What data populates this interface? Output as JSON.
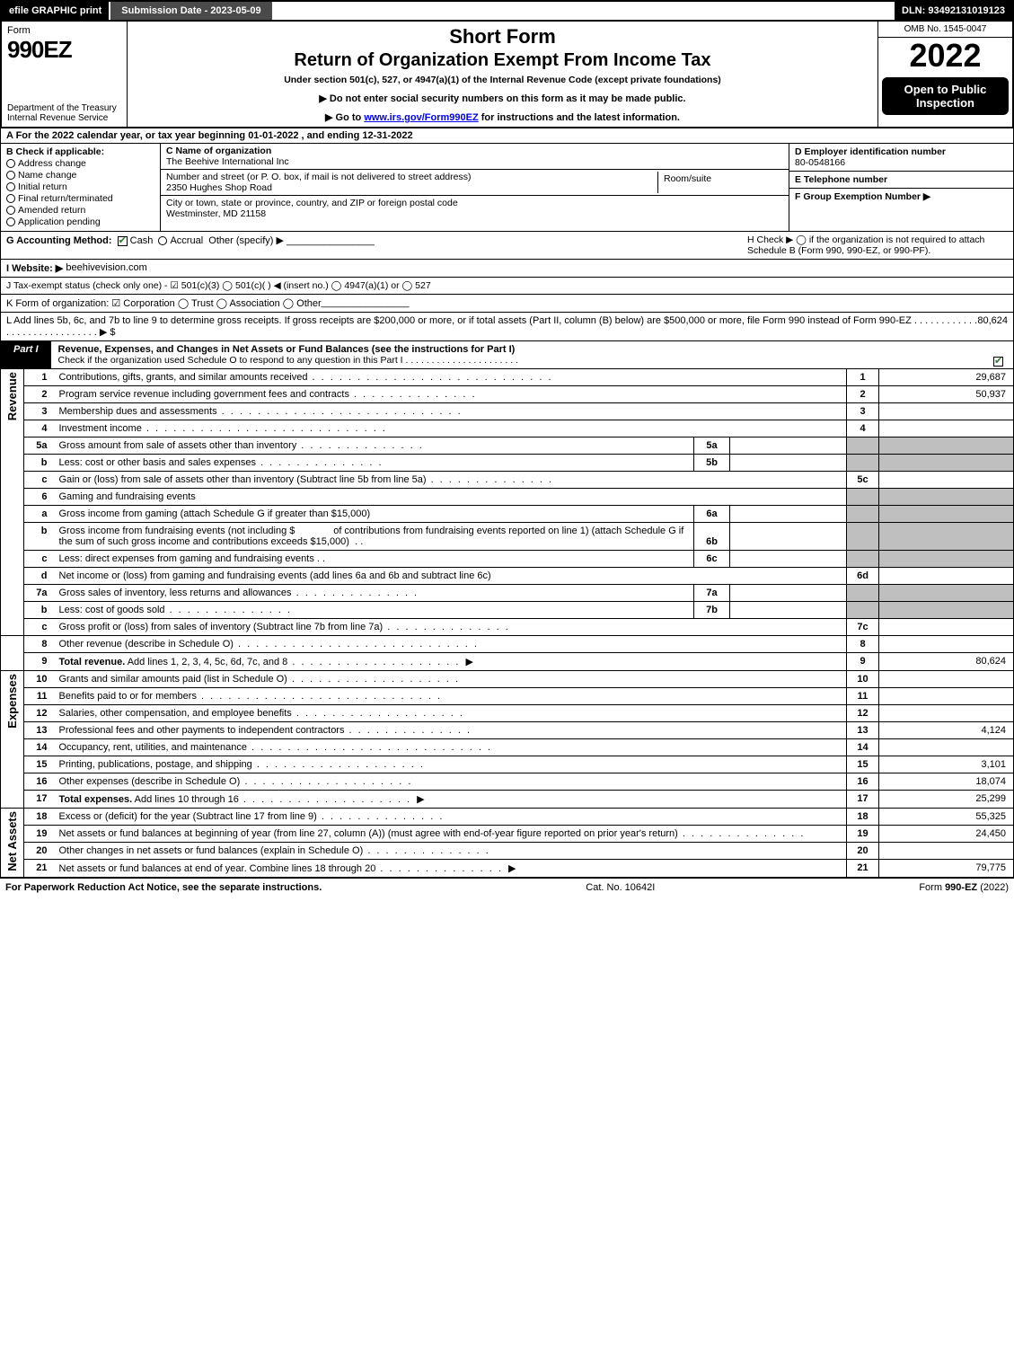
{
  "topbar": {
    "efile": "efile GRAPHIC print",
    "submission": "Submission Date - 2023-05-09",
    "dln": "DLN: 93492131019123"
  },
  "header": {
    "form_word": "Form",
    "form_num": "990EZ",
    "dept": "Department of the Treasury\nInternal Revenue Service",
    "short_form": "Short Form",
    "return_title": "Return of Organization Exempt From Income Tax",
    "under_section": "Under section 501(c), 527, or 4947(a)(1) of the Internal Revenue Code (except private foundations)",
    "instr1_prefix": "▶ Do not enter social security numbers on this form as it may be made public.",
    "instr2_prefix": "▶ Go to ",
    "instr2_link": "www.irs.gov/Form990EZ",
    "instr2_suffix": " for instructions and the latest information.",
    "omb": "OMB No. 1545-0047",
    "year": "2022",
    "open_badge": "Open to Public Inspection"
  },
  "row_a": "A  For the 2022 calendar year, or tax year beginning 01-01-2022  , and ending 12-31-2022",
  "section_b": {
    "label": "B  Check if applicable:",
    "opts": [
      "Address change",
      "Name change",
      "Initial return",
      "Final return/terminated",
      "Amended return",
      "Application pending"
    ]
  },
  "section_c": {
    "name_label": "C Name of organization",
    "name": "The Beehive International Inc",
    "street_label": "Number and street (or P. O. box, if mail is not delivered to street address)",
    "street": "2350 Hughes Shop Road",
    "room_label": "Room/suite",
    "city_label": "City or town, state or province, country, and ZIP or foreign postal code",
    "city": "Westminster, MD  21158"
  },
  "section_d": {
    "ein_label": "D Employer identification number",
    "ein": "80-0548166",
    "tel_label": "E Telephone number",
    "group_label": "F Group Exemption Number   ▶"
  },
  "row_g": {
    "label": "G Accounting Method:",
    "cash": "Cash",
    "accrual": "Accrual",
    "other": "Other (specify) ▶",
    "h_text": "H  Check ▶  ◯  if the organization is not required to attach Schedule B (Form 990, 990-EZ, or 990-PF)."
  },
  "row_i": {
    "label": "I Website: ▶",
    "value": "beehivevision.com"
  },
  "row_j": "J Tax-exempt status (check only one) -  ☑ 501(c)(3)  ◯ 501(c)(  ) ◀ (insert no.)  ◯ 4947(a)(1) or  ◯ 527",
  "row_k": "K Form of organization:   ☑ Corporation   ◯ Trust   ◯ Association   ◯ Other",
  "row_l": {
    "text": "L Add lines 5b, 6c, and 7b to line 9 to determine gross receipts. If gross receipts are $200,000 or more, or if total assets (Part II, column (B) below) are $500,000 or more, file Form 990 instead of Form 990-EZ  . . . . . . . . . . . . . . . . . . . . . . . . . . . . .  ▶ $ ",
    "amount": "80,624"
  },
  "part1": {
    "tab": "Part I",
    "title": "Revenue, Expenses, and Changes in Net Assets or Fund Balances (see the instructions for Part I)",
    "sub": "Check if the organization used Schedule O to respond to any question in this Part I . . . . . . . . . . . . . . . . . . . . . ."
  },
  "side_labels": {
    "revenue": "Revenue",
    "expenses": "Expenses",
    "net": "Net Assets"
  },
  "lines": {
    "l1": {
      "n": "1",
      "d": "Contributions, gifts, grants, and similar amounts received",
      "ln": "1",
      "amt": "29,687"
    },
    "l2": {
      "n": "2",
      "d": "Program service revenue including government fees and contracts",
      "ln": "2",
      "amt": "50,937"
    },
    "l3": {
      "n": "3",
      "d": "Membership dues and assessments",
      "ln": "3",
      "amt": ""
    },
    "l4": {
      "n": "4",
      "d": "Investment income",
      "ln": "4",
      "amt": ""
    },
    "l5a": {
      "n": "5a",
      "d": "Gross amount from sale of assets other than inventory",
      "sub": "5a"
    },
    "l5b": {
      "n": "b",
      "d": "Less: cost or other basis and sales expenses",
      "sub": "5b"
    },
    "l5c": {
      "n": "c",
      "d": "Gain or (loss) from sale of assets other than inventory (Subtract line 5b from line 5a)",
      "ln": "5c",
      "amt": ""
    },
    "l6": {
      "n": "6",
      "d": "Gaming and fundraising events"
    },
    "l6a": {
      "n": "a",
      "d": "Gross income from gaming (attach Schedule G if greater than $15,000)",
      "sub": "6a"
    },
    "l6b": {
      "n": "b",
      "d": "Gross income from fundraising events (not including $",
      "d2": "of contributions from fundraising events reported on line 1) (attach Schedule G if the sum of such gross income and contributions exceeds $15,000)",
      "sub": "6b"
    },
    "l6c": {
      "n": "c",
      "d": "Less: direct expenses from gaming and fundraising events",
      "sub": "6c"
    },
    "l6d": {
      "n": "d",
      "d": "Net income or (loss) from gaming and fundraising events (add lines 6a and 6b and subtract line 6c)",
      "ln": "6d",
      "amt": ""
    },
    "l7a": {
      "n": "7a",
      "d": "Gross sales of inventory, less returns and allowances",
      "sub": "7a"
    },
    "l7b": {
      "n": "b",
      "d": "Less: cost of goods sold",
      "sub": "7b"
    },
    "l7c": {
      "n": "c",
      "d": "Gross profit or (loss) from sales of inventory (Subtract line 7b from line 7a)",
      "ln": "7c",
      "amt": ""
    },
    "l8": {
      "n": "8",
      "d": "Other revenue (describe in Schedule O)",
      "ln": "8",
      "amt": ""
    },
    "l9": {
      "n": "9",
      "d": "Total revenue. Add lines 1, 2, 3, 4, 5c, 6d, 7c, and 8",
      "ln": "9",
      "amt": "80,624"
    },
    "l10": {
      "n": "10",
      "d": "Grants and similar amounts paid (list in Schedule O)",
      "ln": "10",
      "amt": ""
    },
    "l11": {
      "n": "11",
      "d": "Benefits paid to or for members",
      "ln": "11",
      "amt": ""
    },
    "l12": {
      "n": "12",
      "d": "Salaries, other compensation, and employee benefits",
      "ln": "12",
      "amt": ""
    },
    "l13": {
      "n": "13",
      "d": "Professional fees and other payments to independent contractors",
      "ln": "13",
      "amt": "4,124"
    },
    "l14": {
      "n": "14",
      "d": "Occupancy, rent, utilities, and maintenance",
      "ln": "14",
      "amt": ""
    },
    "l15": {
      "n": "15",
      "d": "Printing, publications, postage, and shipping",
      "ln": "15",
      "amt": "3,101"
    },
    "l16": {
      "n": "16",
      "d": "Other expenses (describe in Schedule O)",
      "ln": "16",
      "amt": "18,074"
    },
    "l17": {
      "n": "17",
      "d": "Total expenses. Add lines 10 through 16",
      "ln": "17",
      "amt": "25,299"
    },
    "l18": {
      "n": "18",
      "d": "Excess or (deficit) for the year (Subtract line 17 from line 9)",
      "ln": "18",
      "amt": "55,325"
    },
    "l19": {
      "n": "19",
      "d": "Net assets or fund balances at beginning of year (from line 27, column (A)) (must agree with end-of-year figure reported on prior year's return)",
      "ln": "19",
      "amt": "24,450"
    },
    "l20": {
      "n": "20",
      "d": "Other changes in net assets or fund balances (explain in Schedule O)",
      "ln": "20",
      "amt": ""
    },
    "l21": {
      "n": "21",
      "d": "Net assets or fund balances at end of year. Combine lines 18 through 20",
      "ln": "21",
      "amt": "79,775"
    }
  },
  "footer": {
    "left": "For Paperwork Reduction Act Notice, see the separate instructions.",
    "mid": "Cat. No. 10642I",
    "right": "Form 990-EZ (2022)"
  }
}
